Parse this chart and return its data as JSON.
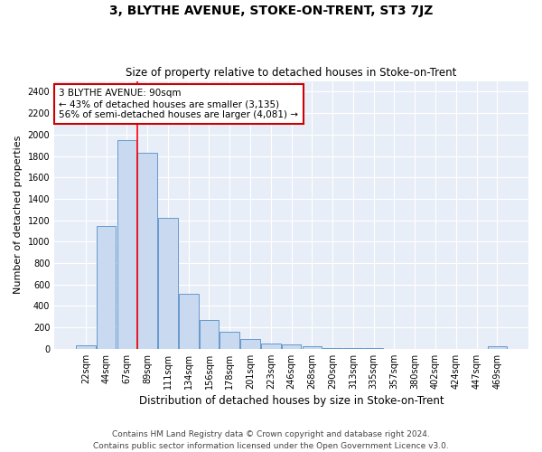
{
  "title": "3, BLYTHE AVENUE, STOKE-ON-TRENT, ST3 7JZ",
  "subtitle": "Size of property relative to detached houses in Stoke-on-Trent",
  "xlabel": "Distribution of detached houses by size in Stoke-on-Trent",
  "ylabel": "Number of detached properties",
  "footer1": "Contains HM Land Registry data © Crown copyright and database right 2024.",
  "footer2": "Contains public sector information licensed under the Open Government Licence v3.0.",
  "bin_labels": [
    "22sqm",
    "44sqm",
    "67sqm",
    "89sqm",
    "111sqm",
    "134sqm",
    "156sqm",
    "178sqm",
    "201sqm",
    "223sqm",
    "246sqm",
    "268sqm",
    "290sqm",
    "313sqm",
    "335sqm",
    "357sqm",
    "380sqm",
    "402sqm",
    "424sqm",
    "447sqm",
    "469sqm"
  ],
  "bar_values": [
    30,
    1150,
    1950,
    1830,
    1220,
    510,
    270,
    155,
    90,
    45,
    40,
    20,
    10,
    5,
    3,
    2,
    2,
    1,
    1,
    1,
    20
  ],
  "bar_color": "#c9d9f0",
  "bar_edge_color": "#6699cc",
  "red_line_x": 2.5,
  "annotation_title": "3 BLYTHE AVENUE: 90sqm",
  "annotation_line1": "← 43% of detached houses are smaller (3,135)",
  "annotation_line2": "56% of semi-detached houses are larger (4,081) →",
  "annotation_box_color": "#ffffff",
  "annotation_box_edge": "#cc0000",
  "ylim": [
    0,
    2500
  ],
  "yticks": [
    0,
    200,
    400,
    600,
    800,
    1000,
    1200,
    1400,
    1600,
    1800,
    2000,
    2200,
    2400
  ],
  "bg_color": "#ffffff",
  "plot_bg_color": "#e8eef8",
  "grid_color": "#ffffff",
  "title_fontsize": 10,
  "subtitle_fontsize": 8.5,
  "xlabel_fontsize": 8.5,
  "ylabel_fontsize": 8,
  "tick_fontsize": 7,
  "annotation_fontsize": 7.5,
  "footer_fontsize": 6.5
}
